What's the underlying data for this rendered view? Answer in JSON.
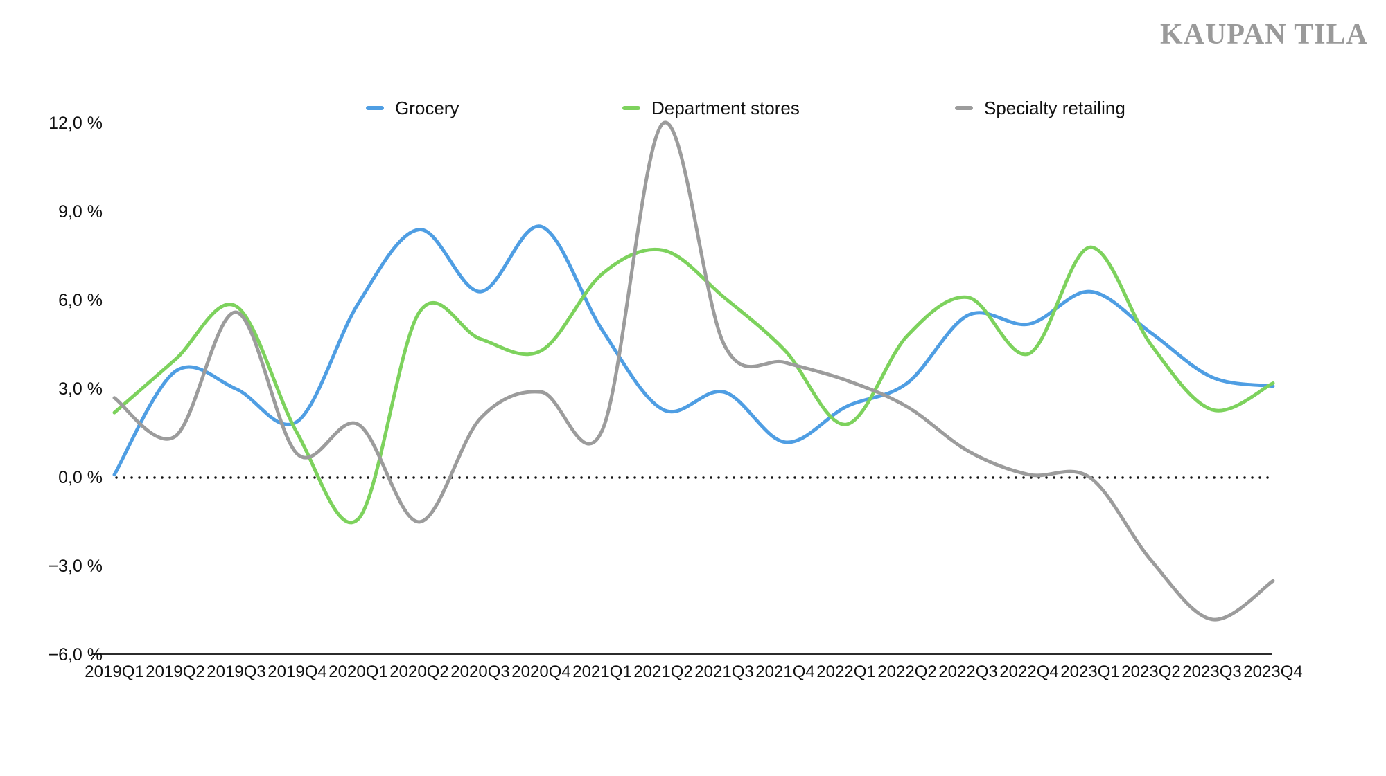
{
  "logo": "KAUPAN TILA",
  "chart_data": {
    "type": "line",
    "title": "",
    "categories": [
      "2019Q1",
      "2019Q2",
      "2019Q3",
      "2019Q4",
      "2020Q1",
      "2020Q2",
      "2020Q3",
      "2020Q4",
      "2021Q1",
      "2021Q2",
      "2021Q3",
      "2021Q4",
      "2022Q1",
      "2022Q2",
      "2022Q3",
      "2022Q4",
      "2023Q1",
      "2023Q2",
      "2023Q3",
      "2023Q4"
    ],
    "series": [
      {
        "name": "Grocery",
        "color": "#4F9EE3",
        "values": [
          0.1,
          3.6,
          3.0,
          1.9,
          5.9,
          8.4,
          6.3,
          8.5,
          5.0,
          2.3,
          2.9,
          1.2,
          2.4,
          3.2,
          5.5,
          5.2,
          6.3,
          4.9,
          3.4,
          3.1
        ]
      },
      {
        "name": "Department stores",
        "color": "#7DD25D",
        "values": [
          2.2,
          4.0,
          5.8,
          1.5,
          -1.4,
          5.6,
          4.7,
          4.3,
          6.9,
          7.7,
          6.1,
          4.3,
          1.8,
          4.8,
          6.1,
          4.2,
          7.8,
          4.5,
          2.3,
          3.2
        ]
      },
      {
        "name": "Specialty retailing",
        "color": "#9C9C9C",
        "values": [
          2.7,
          1.4,
          5.6,
          0.8,
          1.8,
          -1.5,
          2.0,
          2.9,
          1.6,
          12.0,
          4.5,
          3.9,
          3.3,
          2.4,
          0.9,
          0.1,
          0.0,
          -2.8,
          -4.8,
          -3.5
        ]
      }
    ],
    "xlabel": "",
    "ylabel": "",
    "ylim": [
      -6,
      12
    ],
    "y_ticks": [
      {
        "value": 12,
        "label": "12,0 %"
      },
      {
        "value": 9,
        "label": "9,0 %"
      },
      {
        "value": 6,
        "label": "6,0 %"
      },
      {
        "value": 3,
        "label": "3,0 %"
      },
      {
        "value": 0,
        "label": "0,0 %"
      },
      {
        "value": -3,
        "label": "−3,0 %"
      },
      {
        "value": -6,
        "label": "−6,0 %"
      }
    ],
    "zero_line_style": "dotted",
    "grid": false,
    "legend_position": "top"
  }
}
